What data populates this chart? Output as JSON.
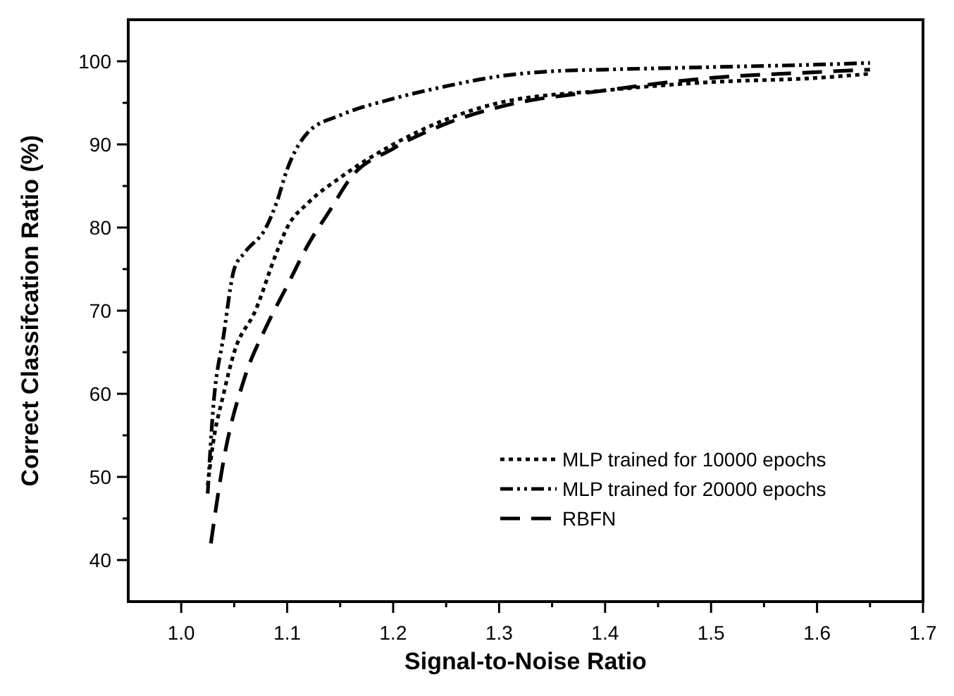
{
  "chart_data": {
    "type": "line",
    "xlabel": "Signal-to-Noise Ratio",
    "ylabel": "Correct Classifcation Ratio (%)",
    "xlim": [
      0.95,
      1.7
    ],
    "xticks": [
      {
        "value": 1.0,
        "label": "1.0"
      },
      {
        "value": 1.05,
        "label": null
      },
      {
        "value": 1.1,
        "label": "1.1"
      },
      {
        "value": 1.15,
        "label": null
      },
      {
        "value": 1.2,
        "label": "1.2"
      },
      {
        "value": 1.25,
        "label": null
      },
      {
        "value": 1.3,
        "label": "1.3"
      },
      {
        "value": 1.35,
        "label": null
      },
      {
        "value": 1.4,
        "label": "1.4"
      },
      {
        "value": 1.45,
        "label": null
      },
      {
        "value": 1.5,
        "label": "1.5"
      },
      {
        "value": 1.55,
        "label": null
      },
      {
        "value": 1.6,
        "label": "1.6"
      },
      {
        "value": 1.65,
        "label": null
      },
      {
        "value": 1.7,
        "label": "1.7"
      }
    ],
    "ylim": [
      35,
      105
    ],
    "yticks": [
      40,
      {
        "value": 45,
        "label": null
      },
      50,
      {
        "value": 55,
        "label": null
      },
      60,
      {
        "value": 65,
        "label": null
      },
      70,
      {
        "value": 75,
        "label": null
      },
      80,
      {
        "value": 85,
        "label": null
      },
      90,
      {
        "value": 95,
        "label": null
      },
      100
    ],
    "legend": "bottom right",
    "grid": false,
    "marker": "none",
    "series": [
      {
        "name": "MLP trained for 10000 epochs",
        "color": "#000000",
        "line_style": "dotted",
        "x": [
          1.025,
          1.03,
          1.04,
          1.05,
          1.07,
          1.09,
          1.1,
          1.12,
          1.15,
          1.2,
          1.25,
          1.3,
          1.4,
          1.5,
          1.6,
          1.65
        ],
        "values": [
          49,
          54,
          60,
          65,
          70,
          77,
          80,
          83,
          86,
          90,
          93,
          95,
          96.5,
          97.5,
          98,
          98.5
        ]
      },
      {
        "name": "MLP trained for 20000 epochs",
        "color": "#000000",
        "line_style": "dashdot",
        "x": [
          1.025,
          1.03,
          1.04,
          1.05,
          1.06,
          1.08,
          1.09,
          1.1,
          1.12,
          1.15,
          1.2,
          1.25,
          1.3,
          1.35,
          1.4,
          1.5,
          1.6,
          1.65
        ],
        "values": [
          48,
          58,
          67,
          75,
          77,
          80,
          83,
          87,
          91.5,
          93.5,
          95.5,
          97,
          98.2,
          98.8,
          99,
          99.3,
          99.6,
          99.8
        ]
      },
      {
        "name": "RBFN",
        "color": "#000000",
        "line_style": "dashed",
        "x": [
          1.028,
          1.04,
          1.06,
          1.08,
          1.1,
          1.12,
          1.14,
          1.16,
          1.2,
          1.25,
          1.3,
          1.4,
          1.5,
          1.6,
          1.65
        ],
        "values": [
          42,
          52,
          62,
          68,
          73,
          78,
          82,
          86,
          89.5,
          92.5,
          94.5,
          96.5,
          98,
          98.7,
          99
        ]
      }
    ]
  }
}
